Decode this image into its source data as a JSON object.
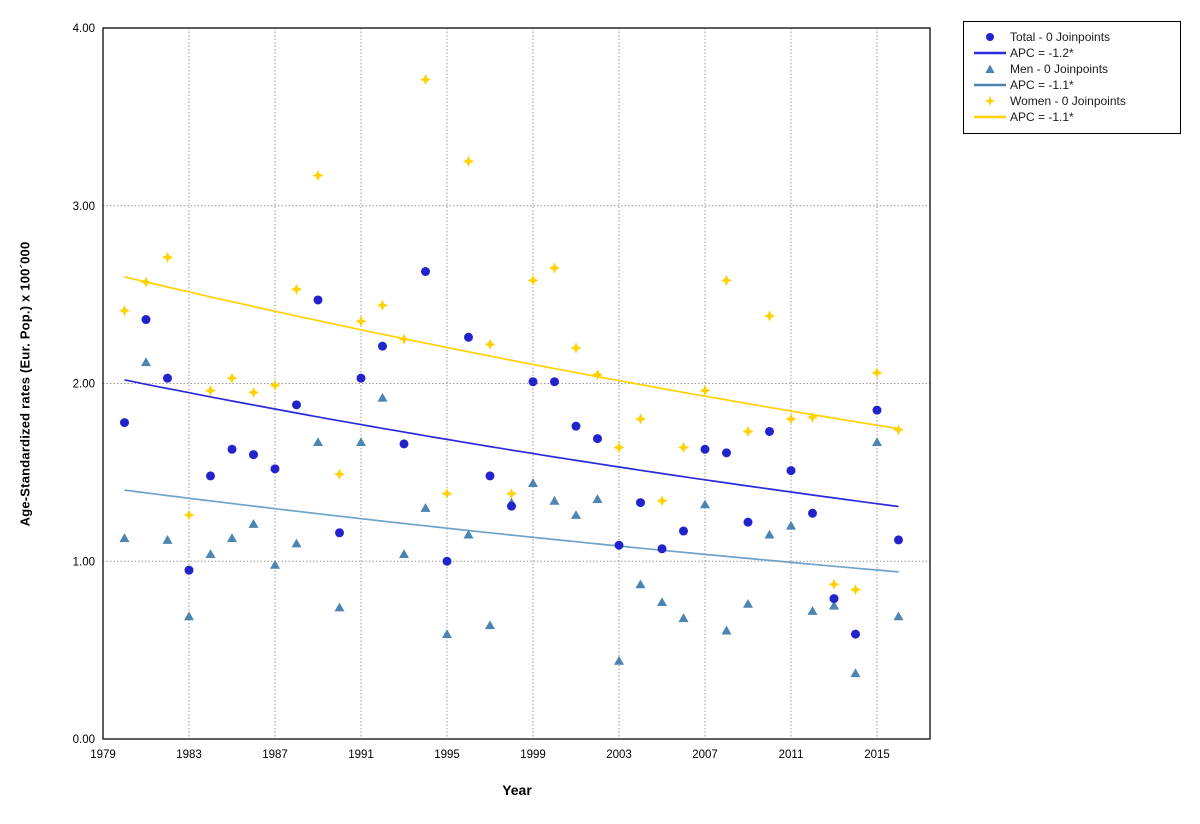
{
  "chart_data": {
    "type": "scatter",
    "title": "",
    "xlabel": "Year",
    "ylabel": "Age-Standardized rates (Eur. Pop.) x 100´000",
    "xlim": [
      1979,
      2018.5
    ],
    "ylim": [
      0,
      4
    ],
    "grid": "dotted",
    "legend_position": "outside-top-right",
    "x_ticks": [
      1979,
      1983,
      1987,
      1991,
      1995,
      1999,
      2003,
      2007,
      2011,
      2015
    ],
    "y_ticks": [
      {
        "value": 0,
        "label": "0.00"
      },
      {
        "value": 1,
        "label": "1.00"
      },
      {
        "value": 2,
        "label": "2.00"
      },
      {
        "value": 3,
        "label": "3.00"
      },
      {
        "value": 4,
        "label": "4.00"
      }
    ],
    "years": [
      1980,
      1981,
      1982,
      1983,
      1984,
      1985,
      1986,
      1987,
      1988,
      1989,
      1990,
      1991,
      1992,
      1993,
      1994,
      1995,
      1996,
      1997,
      1998,
      1999,
      2000,
      2001,
      2002,
      2003,
      2004,
      2005,
      2006,
      2007,
      2008,
      2009,
      2010,
      2011,
      2012,
      2013,
      2014,
      2015,
      2016
    ],
    "series": [
      {
        "name": "Total",
        "legend_label": "Total - 0 Joinpoints",
        "apc_label": "APC = -1.2*",
        "apc_percent": -1.2,
        "marker": "circle",
        "marker_color": "#2323CE",
        "line_color": "#2B2BDC",
        "trend": {
          "start_year": 1980,
          "end_year": 2016,
          "start_value": 2.02
        },
        "values": [
          1.78,
          2.36,
          2.03,
          0.95,
          1.48,
          1.63,
          1.6,
          1.52,
          1.88,
          2.47,
          1.16,
          2.03,
          2.21,
          1.66,
          2.63,
          1.0,
          2.26,
          1.48,
          1.31,
          2.01,
          2.01,
          1.76,
          1.69,
          1.09,
          1.33,
          1.07,
          1.17,
          1.63,
          1.61,
          1.22,
          1.73,
          1.51,
          1.27,
          0.79,
          0.59,
          1.85,
          1.12
        ]
      },
      {
        "name": "Men",
        "legend_label": "Men - 0 Joinpoints",
        "apc_label": "APC = -1.1*",
        "apc_percent": -1.1,
        "marker": "triangle",
        "marker_color": "#4C84B2",
        "line_color": "#6FA3C8",
        "trend": {
          "start_year": 1980,
          "end_year": 2016,
          "start_value": 1.4
        },
        "values": [
          1.13,
          2.12,
          1.12,
          0.69,
          1.04,
          1.13,
          1.21,
          0.98,
          1.1,
          1.67,
          0.74,
          1.67,
          1.92,
          1.04,
          1.3,
          0.59,
          1.15,
          0.64,
          1.33,
          1.44,
          1.34,
          1.26,
          1.35,
          0.44,
          0.87,
          0.77,
          0.68,
          1.32,
          0.61,
          0.76,
          1.15,
          1.2,
          0.72,
          0.75,
          0.37,
          1.67,
          0.69
        ]
      },
      {
        "name": "Women",
        "legend_label": "Women - 0 Joinpoints",
        "apc_label": "APC = -1.1*",
        "apc_percent": -1.1,
        "marker": "star4",
        "marker_color": "#FFD100",
        "line_color": "#FFD100",
        "trend": {
          "start_year": 1980,
          "end_year": 2016,
          "start_value": 2.6
        },
        "values": [
          2.41,
          2.57,
          2.71,
          1.26,
          1.96,
          2.03,
          1.95,
          1.99,
          2.53,
          3.17,
          1.49,
          2.35,
          2.44,
          2.25,
          3.71,
          1.38,
          3.25,
          2.22,
          1.38,
          2.58,
          2.65,
          2.2,
          2.05,
          1.64,
          1.8,
          1.34,
          1.64,
          1.96,
          2.58,
          1.73,
          2.38,
          1.8,
          1.81,
          0.87,
          0.84,
          2.06,
          1.74
        ]
      }
    ]
  }
}
